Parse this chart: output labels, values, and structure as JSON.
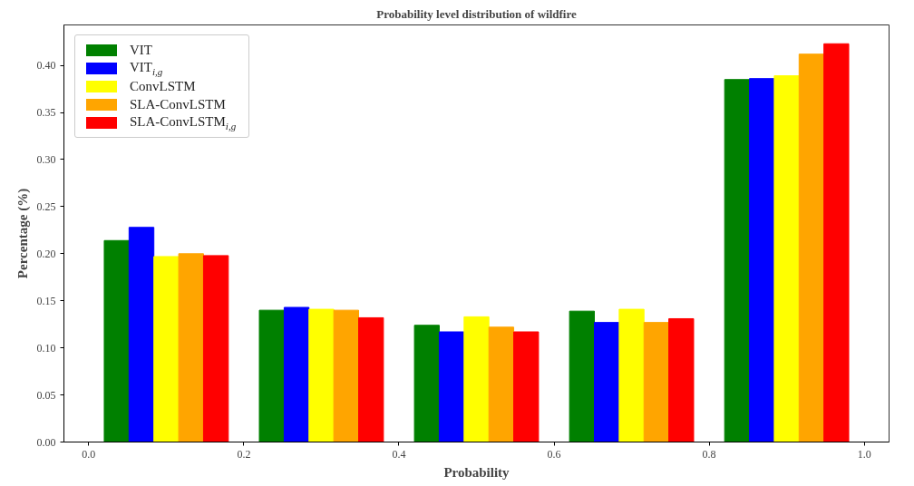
{
  "chart_data": {
    "type": "bar",
    "title": "Probability level distribution of wildfire",
    "xlabel": "Probability",
    "ylabel": "Percentage (%)",
    "x": [
      0.1,
      0.3,
      0.5,
      0.7,
      0.9
    ],
    "series": [
      {
        "name": "VIT",
        "color": "#008000",
        "values": [
          0.214,
          0.14,
          0.124,
          0.139,
          0.385
        ]
      },
      {
        "name": "VIT$_{i,g}$",
        "color": "#0000ff",
        "values": [
          0.228,
          0.143,
          0.117,
          0.127,
          0.386
        ]
      },
      {
        "name": "ConvLSTM",
        "color": "#ffff00",
        "values": [
          0.197,
          0.141,
          0.133,
          0.141,
          0.389
        ]
      },
      {
        "name": "SLA-ConvLSTM",
        "color": "#ffa500",
        "values": [
          0.2,
          0.14,
          0.122,
          0.127,
          0.412
        ]
      },
      {
        "name": "SLA-ConvLSTM$_{i,g}$",
        "color": "#ff0000",
        "values": [
          0.198,
          0.132,
          0.117,
          0.131,
          0.423
        ]
      }
    ],
    "xlim": [
      -0.032,
      1.032
    ],
    "ylim": [
      0,
      0.443
    ],
    "xticks": [
      {
        "value": 0,
        "label": "0.0"
      },
      0.2,
      0.4,
      0.6,
      0.8,
      {
        "value": 1,
        "label": "1.0"
      }
    ],
    "yticks": [
      {
        "value": 0,
        "label": "0.00"
      },
      0.05,
      {
        "value": 0.1,
        "label": "0.10"
      },
      0.15,
      {
        "value": 0.2,
        "label": "0.20"
      },
      0.25,
      {
        "value": 0.3,
        "label": "0.30"
      },
      0.35,
      {
        "value": 0.4,
        "label": "0.40"
      }
    ],
    "legend": "top left",
    "grid": false
  }
}
